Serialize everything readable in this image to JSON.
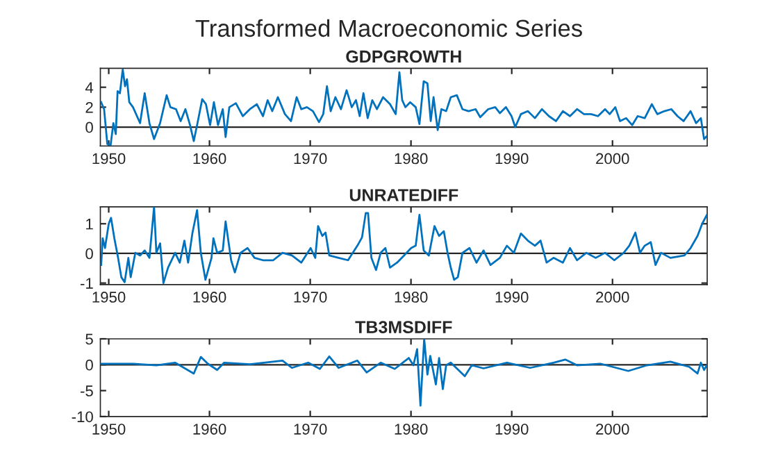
{
  "chart_data": [
    {
      "type": "line",
      "title": "GDPGROWTH",
      "x": [
        1949.25,
        1949.54,
        1949.86,
        1950.19,
        1950.46,
        1950.7,
        1950.88,
        1951.11,
        1951.39,
        1951.62,
        1951.81,
        1952.04,
        1952.41,
        1953.11,
        1953.57,
        1954.04,
        1954.5,
        1955.1,
        1955.75,
        1956.12,
        1956.68,
        1957.14,
        1957.61,
        1958.07,
        1958.44,
        1958.81,
        1959.28,
        1959.65,
        1960.06,
        1960.44,
        1960.85,
        1961.32,
        1961.6,
        1961.97,
        1962.62,
        1963.31,
        1964.01,
        1964.7,
        1965.31,
        1965.77,
        1966.23,
        1966.79,
        1967.49,
        1968.09,
        1968.65,
        1969.11,
        1969.67,
        1970.27,
        1970.87,
        1971.29,
        1971.66,
        1972.03,
        1972.5,
        1973.05,
        1973.61,
        1974.12,
        1974.54,
        1974.91,
        1975.28,
        1975.7,
        1976.16,
        1976.62,
        1977.23,
        1977.92,
        1978.48,
        1978.85,
        1979.13,
        1979.45,
        1979.92,
        1980.47,
        1980.84,
        1981.26,
        1981.63,
        1981.96,
        1982.24,
        1982.65,
        1983.02,
        1983.49,
        1983.95,
        1984.55,
        1985.11,
        1985.71,
        1986.41,
        1986.87,
        1987.66,
        1988.36,
        1988.82,
        1989.42,
        1989.98,
        1990.35,
        1990.91,
        1991.6,
        1992.3,
        1993.0,
        1993.69,
        1994.39,
        1995.08,
        1995.78,
        1996.48,
        1997.17,
        1997.87,
        1998.56,
        1999.26,
        1999.72,
        2000.28,
        2000.74,
        2001.35,
        2001.95,
        2002.5,
        2003.2,
        2003.9,
        2004.45,
        2005.15,
        2005.84,
        2006.45,
        2007.05,
        2007.75,
        2008.3,
        2008.77,
        2009.09,
        2009.37
      ],
      "series": [
        {
          "color": "#0072bd",
          "values": [
            2.5,
            1.8,
            -1.7,
            -1.8,
            0.4,
            -0.7,
            3.6,
            3.4,
            5.8,
            4.1,
            4.8,
            2.5,
            2.0,
            0.4,
            3.4,
            0.4,
            -1.2,
            0.4,
            3.2,
            2.0,
            1.8,
            0.6,
            1.8,
            0.2,
            -1.4,
            0.4,
            2.8,
            2.3,
            0.2,
            2.5,
            0.2,
            1.8,
            -1.0,
            2.0,
            2.4,
            1.1,
            1.8,
            2.3,
            1.1,
            2.7,
            1.6,
            3.0,
            1.3,
            0.6,
            3.0,
            1.8,
            2.0,
            1.6,
            0.5,
            1.3,
            4.1,
            1.6,
            3.0,
            1.8,
            3.7,
            2.0,
            2.7,
            1.1,
            3.4,
            0.9,
            2.7,
            1.8,
            3.0,
            2.3,
            1.3,
            5.5,
            2.7,
            2.0,
            2.5,
            2.0,
            0.3,
            4.6,
            4.4,
            0.6,
            3.0,
            -0.3,
            1.8,
            1.6,
            3.0,
            3.2,
            1.8,
            1.6,
            1.8,
            1.0,
            1.8,
            2.0,
            1.4,
            2.0,
            1.1,
            0.0,
            1.3,
            1.6,
            0.9,
            1.8,
            1.1,
            0.6,
            1.6,
            1.1,
            1.8,
            1.3,
            1.3,
            1.1,
            1.8,
            1.3,
            2.0,
            0.6,
            0.9,
            0.2,
            1.1,
            0.9,
            2.3,
            1.3,
            1.6,
            1.8,
            1.1,
            0.6,
            1.6,
            0.4,
            0.9,
            -1.2,
            -0.9
          ]
        }
      ],
      "xlim": [
        1949.17,
        2009.4
      ],
      "xticks": [
        1950,
        1960,
        1970,
        1980,
        1990,
        2000
      ],
      "ylim": [
        -1.9,
        5.9
      ],
      "yticks": [
        0,
        2,
        4
      ],
      "ref_lines": [
        {
          "axis": "y",
          "value": 0,
          "color": "#262626"
        }
      ]
    },
    {
      "type": "line",
      "title": "UNRATEDIFF",
      "x": [
        1949.25,
        1949.4,
        1949.63,
        1950.0,
        1950.23,
        1950.56,
        1950.93,
        1951.25,
        1951.58,
        1951.95,
        1952.18,
        1952.64,
        1953.11,
        1953.57,
        1954.04,
        1954.5,
        1954.73,
        1955.1,
        1955.43,
        1955.89,
        1956.59,
        1957.05,
        1957.51,
        1957.88,
        1958.3,
        1958.77,
        1959.14,
        1959.6,
        1960.2,
        1960.39,
        1960.76,
        1961.32,
        1961.6,
        1962.15,
        1962.52,
        1963.08,
        1963.78,
        1964.47,
        1965.31,
        1966.33,
        1967.25,
        1968.18,
        1969.11,
        1970.04,
        1970.5,
        1970.78,
        1971.2,
        1971.52,
        1971.89,
        1972.82,
        1973.75,
        1974.68,
        1975.14,
        1975.51,
        1975.74,
        1976.07,
        1976.53,
        1976.99,
        1977.46,
        1977.92,
        1978.62,
        1979.31,
        1980.01,
        1980.47,
        1980.84,
        1981.26,
        1981.77,
        1982.33,
        1982.79,
        1983.26,
        1983.63,
        1983.95,
        1984.28,
        1984.65,
        1985.11,
        1985.81,
        1986.5,
        1987.2,
        1987.89,
        1988.82,
        1989.52,
        1990.21,
        1990.91,
        1991.6,
        1992.3,
        1992.86,
        1993.46,
        1994.15,
        1995.08,
        1995.78,
        1996.48,
        1997.4,
        1998.33,
        1999.26,
        2000.18,
        2001.11,
        2001.67,
        2002.27,
        2002.73,
        2003.2,
        2003.8,
        2004.27,
        2004.82,
        2005.75,
        2007.14,
        2007.75,
        2008.44,
        2008.9,
        2009.37
      ],
      "series": [
        {
          "color": "#0072bd",
          "values": [
            -0.39,
            0.51,
            0.18,
            1.0,
            1.2,
            0.51,
            -0.15,
            -0.8,
            -0.97,
            -0.15,
            -0.8,
            0.02,
            -0.07,
            0.1,
            -0.15,
            1.57,
            0.02,
            0.34,
            -1.0,
            -0.48,
            0.02,
            -0.31,
            0.43,
            -0.31,
            0.67,
            1.46,
            0.02,
            -0.89,
            -0.15,
            0.51,
            0.02,
            0.1,
            1.08,
            -0.23,
            -0.64,
            0.02,
            0.18,
            -0.15,
            -0.23,
            -0.23,
            0.02,
            -0.07,
            -0.31,
            0.18,
            -0.15,
            0.92,
            0.59,
            0.7,
            -0.07,
            -0.15,
            -0.23,
            0.26,
            0.54,
            1.36,
            1.36,
            -0.15,
            -0.56,
            0.02,
            0.18,
            -0.48,
            -0.31,
            -0.07,
            0.18,
            0.26,
            1.3,
            0.1,
            -0.07,
            0.92,
            0.59,
            0.75,
            0.02,
            -0.48,
            -0.89,
            -0.8,
            0.02,
            0.18,
            -0.31,
            0.1,
            -0.39,
            -0.15,
            0.26,
            0.02,
            0.67,
            0.43,
            0.26,
            0.43,
            -0.31,
            -0.15,
            -0.31,
            0.18,
            -0.23,
            0.02,
            -0.15,
            0.02,
            -0.23,
            0.02,
            0.26,
            0.7,
            0.02,
            0.26,
            0.38,
            -0.39,
            0.02,
            -0.15,
            -0.07,
            0.18,
            0.59,
            1.0,
            1.3
          ]
        }
      ],
      "xlim": [
        1949.17,
        2009.4
      ],
      "xticks": [
        1950,
        1960,
        1970,
        1980,
        1990,
        2000
      ],
      "ylim": [
        -1.05,
        1.57
      ],
      "yticks": [
        -1,
        0,
        1
      ],
      "ref_lines": [
        {
          "axis": "y",
          "value": 0,
          "color": "#262626"
        }
      ]
    },
    {
      "type": "line",
      "title": "TB3MSDIFF",
      "x": [
        1949.25,
        1952.41,
        1954.73,
        1956.59,
        1958.44,
        1959.14,
        1959.83,
        1960.76,
        1961.46,
        1964.01,
        1967.25,
        1968.18,
        1969.8,
        1970.96,
        1971.89,
        1972.82,
        1974.68,
        1975.6,
        1976.99,
        1978.39,
        1979.78,
        1980.24,
        1980.61,
        1980.94,
        1981.31,
        1981.63,
        1981.91,
        1982.47,
        1982.79,
        1983.16,
        1983.49,
        1983.95,
        1985.34,
        1986.04,
        1987.2,
        1989.52,
        1991.83,
        1994.15,
        1995.31,
        1996.48,
        1998.79,
        2001.57,
        2003.43,
        2005.75,
        2007.6,
        2008.44,
        2008.77,
        2009.09,
        2009.37
      ],
      "series": [
        {
          "color": "#0072bd",
          "values": [
            0.2,
            0.2,
            -0.1,
            0.4,
            -1.7,
            1.5,
            0.2,
            -1.0,
            0.4,
            0.1,
            0.8,
            -0.6,
            0.4,
            -0.8,
            1.6,
            -0.6,
            0.8,
            -1.5,
            0.4,
            -0.8,
            1.3,
            -0.1,
            3.0,
            -7.9,
            5.0,
            -1.9,
            1.7,
            -3.8,
            1.3,
            -4.7,
            -0.1,
            0.4,
            -2.2,
            -0.1,
            -0.7,
            0.4,
            -0.6,
            0.4,
            1.0,
            -0.1,
            0.2,
            -1.2,
            -0.1,
            0.6,
            -0.4,
            -1.7,
            0.4,
            -1.0,
            -0.1
          ]
        }
      ],
      "xlim": [
        1949.17,
        2009.4
      ],
      "xticks": [
        1950,
        1960,
        1970,
        1980,
        1990,
        2000
      ],
      "ylim": [
        -10,
        5
      ],
      "yticks": [
        -10,
        -5,
        0,
        5
      ],
      "ref_lines": [
        {
          "axis": "y",
          "value": 0,
          "color": "#262626"
        }
      ],
      "annotations": [
        "Transformed Macroeconomic Series"
      ]
    }
  ]
}
